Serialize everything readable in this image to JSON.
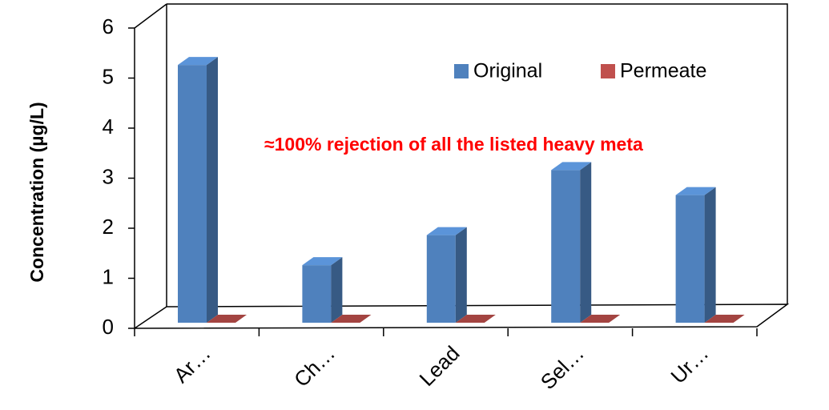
{
  "chart_data": {
    "type": "bar3d",
    "y_label": "Concentration (µg/L)",
    "annotation": "≈100% rejection of all the listed heavy meta",
    "categories": [
      "Ar…",
      "Ch…",
      "Lead",
      "Sel…",
      "Ur…"
    ],
    "series": [
      {
        "name": "Original",
        "color": "#4f81bd",
        "values": [
          5.15,
          1.15,
          1.75,
          3.05,
          2.55
        ]
      },
      {
        "name": "Permeate",
        "color": "#c0504d",
        "values": [
          0,
          0,
          0,
          0,
          0
        ]
      }
    ],
    "ylim": [
      0,
      6
    ],
    "yticks": [
      0,
      1,
      2,
      3,
      4,
      5,
      6
    ],
    "legend": "top-right"
  }
}
